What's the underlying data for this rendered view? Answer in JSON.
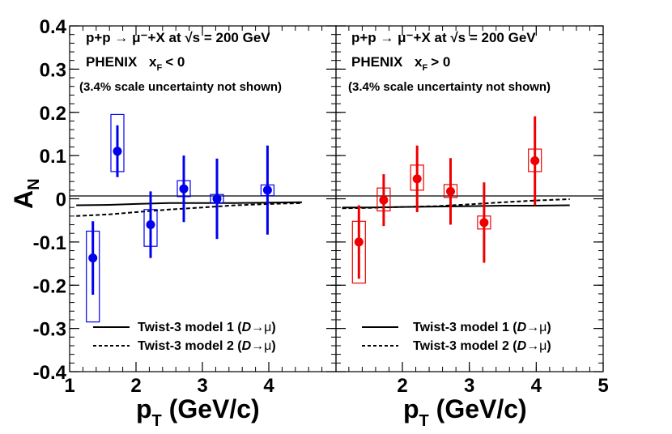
{
  "chart_data": [
    {
      "type": "scatter",
      "panel": "left",
      "process": "p+p → μ⁻+X at √s = 200 GeV",
      "experiment": "PHENIX",
      "xf_label": "x",
      "xf_sub": "F",
      "xf_cut": "< 0",
      "note": "(3.4% scale uncertainty not shown)",
      "color": "#0000ee",
      "xlim": [
        1,
        5
      ],
      "ylim": [
        -0.4,
        0.4
      ],
      "points": [
        {
          "x": 1.35,
          "y": -0.137,
          "stat_err": 0.085,
          "sys_lo": -0.285,
          "sys_hi": -0.075
        },
        {
          "x": 1.72,
          "y": 0.11,
          "stat_err": 0.06,
          "sys_lo": 0.063,
          "sys_hi": 0.195
        },
        {
          "x": 2.22,
          "y": -0.06,
          "stat_err": 0.077,
          "sys_lo": -0.11,
          "sys_hi": -0.025
        },
        {
          "x": 2.72,
          "y": 0.023,
          "stat_err": 0.077,
          "sys_lo": 0.005,
          "sys_hi": 0.042
        },
        {
          "x": 3.22,
          "y": 0.0,
          "stat_err": 0.093,
          "sys_lo": -0.01,
          "sys_hi": 0.01
        },
        {
          "x": 3.98,
          "y": 0.02,
          "stat_err": 0.103,
          "sys_lo": 0.007,
          "sys_hi": 0.032
        }
      ],
      "curves": [
        {
          "name": "Twist-3 model 1 (D→μ)",
          "style": "solid",
          "x": [
            1.1,
            1.6,
            2.0,
            2.5,
            3.0,
            3.5,
            4.0,
            4.5
          ],
          "y": [
            -0.015,
            -0.014,
            -0.012,
            -0.01,
            -0.01,
            -0.01,
            -0.009,
            -0.008
          ]
        },
        {
          "name": "Twist-3 model 2 (D→μ)",
          "style": "dashed",
          "x": [
            1.1,
            1.6,
            2.0,
            2.5,
            3.0,
            3.5,
            4.0,
            4.5
          ],
          "y": [
            -0.04,
            -0.036,
            -0.031,
            -0.025,
            -0.02,
            -0.015,
            -0.012,
            -0.01
          ]
        }
      ]
    },
    {
      "type": "scatter",
      "panel": "right",
      "process": "p+p → μ⁻+X at √s = 200 GeV",
      "experiment": "PHENIX",
      "xf_label": "x",
      "xf_sub": "F",
      "xf_cut": "> 0",
      "note": "(3.4% scale uncertainty not shown)",
      "color": "#ee0000",
      "xlim": [
        1,
        5
      ],
      "ylim": [
        -0.4,
        0.4
      ],
      "points": [
        {
          "x": 1.35,
          "y": -0.1,
          "stat_err": 0.085,
          "sys_lo": -0.195,
          "sys_hi": -0.052
        },
        {
          "x": 1.72,
          "y": -0.003,
          "stat_err": 0.06,
          "sys_lo": -0.028,
          "sys_hi": 0.025
        },
        {
          "x": 2.22,
          "y": 0.046,
          "stat_err": 0.077,
          "sys_lo": 0.02,
          "sys_hi": 0.078
        },
        {
          "x": 2.72,
          "y": 0.017,
          "stat_err": 0.077,
          "sys_lo": 0.003,
          "sys_hi": 0.033
        },
        {
          "x": 3.22,
          "y": -0.055,
          "stat_err": 0.093,
          "sys_lo": -0.07,
          "sys_hi": -0.04
        },
        {
          "x": 3.98,
          "y": 0.088,
          "stat_err": 0.103,
          "sys_lo": 0.063,
          "sys_hi": 0.115
        }
      ],
      "curves": [
        {
          "name": "Twist-3 model 1 (D→μ)",
          "style": "solid",
          "x": [
            1.1,
            1.5,
            2.0,
            2.5,
            3.0,
            3.5,
            4.0,
            4.5
          ],
          "y": [
            -0.02,
            -0.02,
            -0.019,
            -0.018,
            -0.017,
            -0.016,
            -0.016,
            -0.015
          ]
        },
        {
          "name": "Twist-3 model 2 (D→μ)",
          "style": "dashed",
          "x": [
            1.1,
            1.5,
            2.0,
            2.5,
            3.0,
            3.5,
            4.0,
            4.5
          ],
          "y": [
            -0.022,
            -0.021,
            -0.019,
            -0.017,
            -0.013,
            -0.008,
            -0.004,
            -0.001
          ]
        }
      ]
    }
  ],
  "y_axis": {
    "label": "A",
    "label_sub": "N",
    "ticks": [
      "0.4",
      "0.3",
      "0.2",
      "0.1",
      "0",
      "-0.1",
      "-0.2",
      "-0.3",
      "-0.4"
    ],
    "tick_values": [
      0.4,
      0.3,
      0.2,
      0.1,
      0,
      -0.1,
      -0.2,
      -0.3,
      -0.4
    ]
  },
  "x_axis": {
    "label": "p",
    "label_sub": "T",
    "label_unit": " (GeV/c)",
    "left_ticks": [
      "1",
      "2",
      "3",
      "4"
    ],
    "left_tick_values": [
      1,
      2,
      3,
      4
    ],
    "right_ticks": [
      "2",
      "3",
      "4",
      "5"
    ],
    "right_tick_values": [
      2,
      3,
      4,
      5
    ]
  },
  "legend": {
    "model1": "Twist-3 model 1 (",
    "model2": "Twist-3 model 2 (",
    "decay_italic": "D",
    "decay_arrow": "→",
    "decay_mu": "μ",
    "close": ")"
  }
}
